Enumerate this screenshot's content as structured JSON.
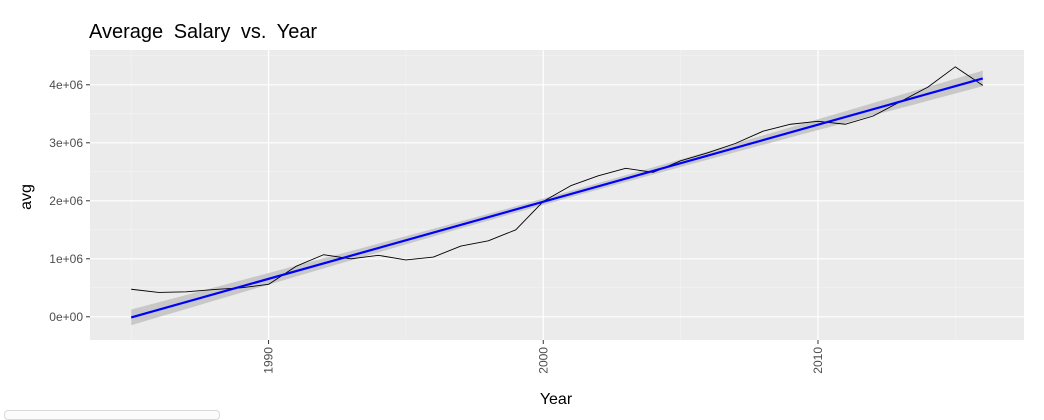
{
  "chart_data": {
    "type": "line",
    "title": "Average Salary vs. Year",
    "xlabel": "Year",
    "ylabel": "avg",
    "xlim": [
      1983.5,
      2017.5
    ],
    "ylim": [
      -400000,
      4600000
    ],
    "x_ticks": [
      1990,
      2000,
      2010
    ],
    "x_tick_labels": [
      "1990",
      "2000",
      "2010"
    ],
    "y_ticks": [
      0,
      1000000,
      2000000,
      3000000,
      4000000
    ],
    "y_tick_labels": [
      "0e+00",
      "1e+06",
      "2e+06",
      "3e+06",
      "4e+06"
    ],
    "grid": true,
    "series": [
      {
        "x": [
          1985,
          1986,
          1987,
          1988,
          1989,
          1990,
          1991,
          1992,
          1993,
          1994,
          1995,
          1996,
          1997,
          1998,
          1999,
          2000,
          2001,
          2002,
          2003,
          2004,
          2005,
          2006,
          2007,
          2008,
          2009,
          2010,
          2011,
          2012,
          2013,
          2014,
          2015,
          2016
        ],
        "values": [
          475000,
          420000,
          430000,
          470000,
          500000,
          560000,
          870000,
          1070000,
          1000000,
          1060000,
          980000,
          1030000,
          1220000,
          1310000,
          1500000,
          1990000,
          2260000,
          2430000,
          2560000,
          2490000,
          2690000,
          2830000,
          2990000,
          3200000,
          3320000,
          3370000,
          3320000,
          3460000,
          3710000,
          3960000,
          4310000,
          3990000
        ],
        "color": "#000000"
      }
    ],
    "trend": {
      "method": "linear",
      "x": [
        1985,
        2016
      ],
      "values": [
        -10000,
        4110000
      ],
      "color": "#0000ff",
      "band_color": "#c6c6c6",
      "band_half_width_edge": 135000,
      "band_half_width_center": 55000
    },
    "colors": {
      "panel_background": "#ebebeb",
      "grid_major": "#ffffff",
      "grid_minor": "#f4f4f4",
      "tick_label": "#4d4d4d"
    }
  }
}
